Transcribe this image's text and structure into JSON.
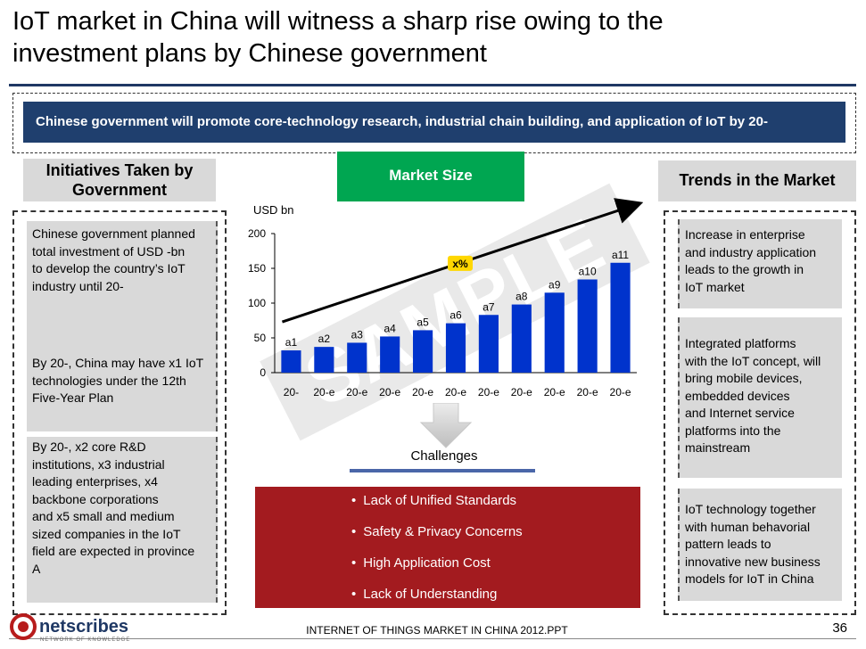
{
  "title": {
    "line1": "IoT market in China will witness a sharp rise owing to the",
    "line2": "investment plans by Chinese government"
  },
  "banner": "Chinese government will promote core-technology research, industrial chain building, and application of IoT by 20-",
  "left": {
    "heading_line1": "Initiatives Taken by",
    "heading_line2": "Government",
    "boxes": [
      {
        "lines": [
          "Chinese government planned",
          "total investment of USD -bn",
          "to develop the country’s IoT",
          "industry until 20-"
        ]
      },
      {
        "lines": [
          "By 20-, China may have x1 IoT",
          "technologies under the 12th",
          "Five-Year Plan"
        ]
      },
      {
        "lines": [
          "By 20-, x2 core R&D",
          "institutions, x3 industrial",
          "leading enterprises, x4",
          "backbone corporations",
          "and x5 small and medium",
          "sized companies in the IoT",
          "field are expected in province",
          "A"
        ]
      }
    ]
  },
  "market_size_label": "Market Size",
  "watermark": "SAMPLE",
  "chart_data": {
    "type": "bar",
    "ylabel": "USD bn",
    "ylim": [
      0,
      200
    ],
    "yticks": [
      0,
      50,
      100,
      150,
      200
    ],
    "categories": [
      "20-",
      "20-e",
      "20-e",
      "20-e",
      "20-e",
      "20-e",
      "20-e",
      "20-e",
      "20-e",
      "20-e",
      "20-e"
    ],
    "data_labels": [
      "a1",
      "a2",
      "a3",
      "a4",
      "a5",
      "a6",
      "a7",
      "a8",
      "a9",
      "a10",
      "a11"
    ],
    "values": [
      32,
      37,
      43,
      52,
      61,
      71,
      83,
      98,
      115,
      134,
      158
    ],
    "bar_color": "#0033cc",
    "trend_arrow_label": "x%",
    "trend_label_color": "#ffd700"
  },
  "challenges": {
    "title": "Challenges",
    "items": [
      "Lack of Unified Standards",
      "Safety & Privacy Concerns",
      "High Application Cost",
      "Lack of Understanding"
    ]
  },
  "right": {
    "heading": "Trends in the Market",
    "boxes": [
      {
        "lines": [
          "Increase in enterprise",
          "and industry application",
          "leads to the growth in",
          "IoT market"
        ]
      },
      {
        "lines": [
          "Integrated platforms",
          "with the IoT concept, will",
          "bring mobile devices,",
          "embedded devices",
          "and Internet service",
          "platforms into the",
          "mainstream"
        ]
      },
      {
        "lines": [
          "IoT technology together",
          "with human behavorial",
          "pattern leads to",
          "innovative new business",
          "models for IoT in China"
        ]
      }
    ]
  },
  "footer": {
    "logo_text": "netscribes",
    "logo_tagline": "NETWORK OF KNOWLEDGE",
    "center": "INTERNET OF THINGS MARKET IN CHINA 2012.PPT",
    "page": "36"
  }
}
